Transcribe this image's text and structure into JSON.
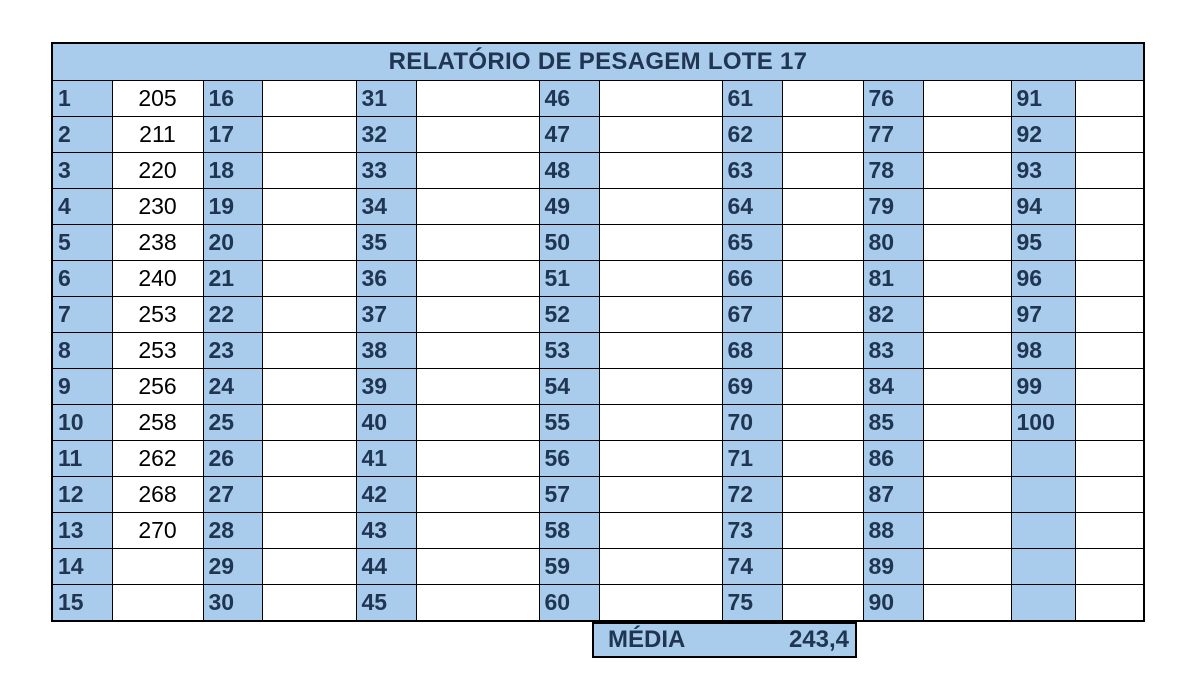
{
  "report": {
    "title": "RELATÓRIO DE PESAGEM LOTE 17",
    "columns": [
      {
        "numbers": [
          "1",
          "2",
          "3",
          "4",
          "5",
          "6",
          "7",
          "8",
          "9",
          "10",
          "11",
          "12",
          "13",
          "14",
          "15"
        ],
        "values": [
          "205",
          "211",
          "220",
          "230",
          "238",
          "240",
          "253",
          "253",
          "256",
          "258",
          "262",
          "268",
          "270",
          "",
          ""
        ]
      },
      {
        "numbers": [
          "16",
          "17",
          "18",
          "19",
          "20",
          "21",
          "22",
          "23",
          "24",
          "25",
          "26",
          "27",
          "28",
          "29",
          "30"
        ],
        "values": [
          "",
          "",
          "",
          "",
          "",
          "",
          "",
          "",
          "",
          "",
          "",
          "",
          "",
          "",
          ""
        ]
      },
      {
        "numbers": [
          "31",
          "32",
          "33",
          "34",
          "35",
          "36",
          "37",
          "38",
          "39",
          "40",
          "41",
          "42",
          "43",
          "44",
          "45"
        ],
        "values": [
          "",
          "",
          "",
          "",
          "",
          "",
          "",
          "",
          "",
          "",
          "",
          "",
          "",
          "",
          ""
        ]
      },
      {
        "numbers": [
          "46",
          "47",
          "48",
          "49",
          "50",
          "51",
          "52",
          "53",
          "54",
          "55",
          "56",
          "57",
          "58",
          "59",
          "60"
        ],
        "values": [
          "",
          "",
          "",
          "",
          "",
          "",
          "",
          "",
          "",
          "",
          "",
          "",
          "",
          "",
          ""
        ]
      },
      {
        "numbers": [
          "61",
          "62",
          "63",
          "64",
          "65",
          "66",
          "67",
          "68",
          "69",
          "70",
          "71",
          "72",
          "73",
          "74",
          "75"
        ],
        "values": [
          "",
          "",
          "",
          "",
          "",
          "",
          "",
          "",
          "",
          "",
          "",
          "",
          "",
          "",
          ""
        ]
      },
      {
        "numbers": [
          "76",
          "77",
          "78",
          "79",
          "80",
          "81",
          "82",
          "83",
          "84",
          "85",
          "86",
          "87",
          "88",
          "89",
          "90"
        ],
        "values": [
          "",
          "",
          "",
          "",
          "",
          "",
          "",
          "",
          "",
          "",
          "",
          "",
          "",
          "",
          ""
        ]
      },
      {
        "numbers": [
          "91",
          "92",
          "93",
          "94",
          "95",
          "96",
          "97",
          "98",
          "99",
          "100",
          "",
          "",
          "",
          "",
          ""
        ],
        "values": [
          "",
          "",
          "",
          "",
          "",
          "",
          "",
          "",
          "",
          "",
          "",
          "",
          "",
          "",
          ""
        ]
      }
    ]
  },
  "summary": {
    "label": "MÉDIA",
    "value": "243,4"
  },
  "colors": {
    "header_fill": "#a9cbec",
    "header_text": "#1f3552",
    "border": "#000000"
  }
}
